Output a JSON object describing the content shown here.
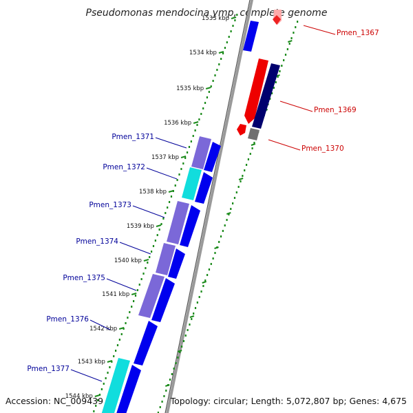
{
  "title": "Pseudomonas mendocina ymp, complete genome",
  "footer": {
    "accession": "Accession: NC_009439",
    "topology": "Topology: circular; Length: 5,072,807 bp; Genes: 4,675"
  },
  "colors": {
    "background": "#ffffff",
    "backbone": "#888888",
    "tick_minor": "#1a8a1a",
    "forward_cds": "#0000ee",
    "forward_gene_light": "#7766cc",
    "forward_gene_cyan": "#11dddd",
    "reverse_cds": "#000088",
    "reverse_gene_red": "#ee0000",
    "reverse_gene_pink": "#ffaaaa",
    "reverse_misc": "#666666",
    "label_forward": "#000099",
    "label_reverse": "#cc0000"
  },
  "scale": {
    "unit": "kbp",
    "ticks": [
      1533,
      1534,
      1535,
      1536,
      1537,
      1538,
      1539,
      1540,
      1541,
      1542,
      1543,
      1544
    ],
    "tick_labels": [
      "1533 kbp",
      "1534 kbp",
      "1535 kbp",
      "1536 kbp",
      "1537 kbp",
      "1538 kbp",
      "1539 kbp",
      "1540 kbp",
      "1541 kbp",
      "1542 kbp",
      "1543 kbp",
      "1544 kbp"
    ]
  },
  "forward_labels": [
    "Pmen_1371",
    "Pmen_1372",
    "Pmen_1373",
    "Pmen_1374",
    "Pmen_1375",
    "Pmen_1376",
    "Pmen_1377"
  ],
  "reverse_labels": [
    "Pmen_1367",
    "Pmen_1369",
    "Pmen_1370"
  ]
}
